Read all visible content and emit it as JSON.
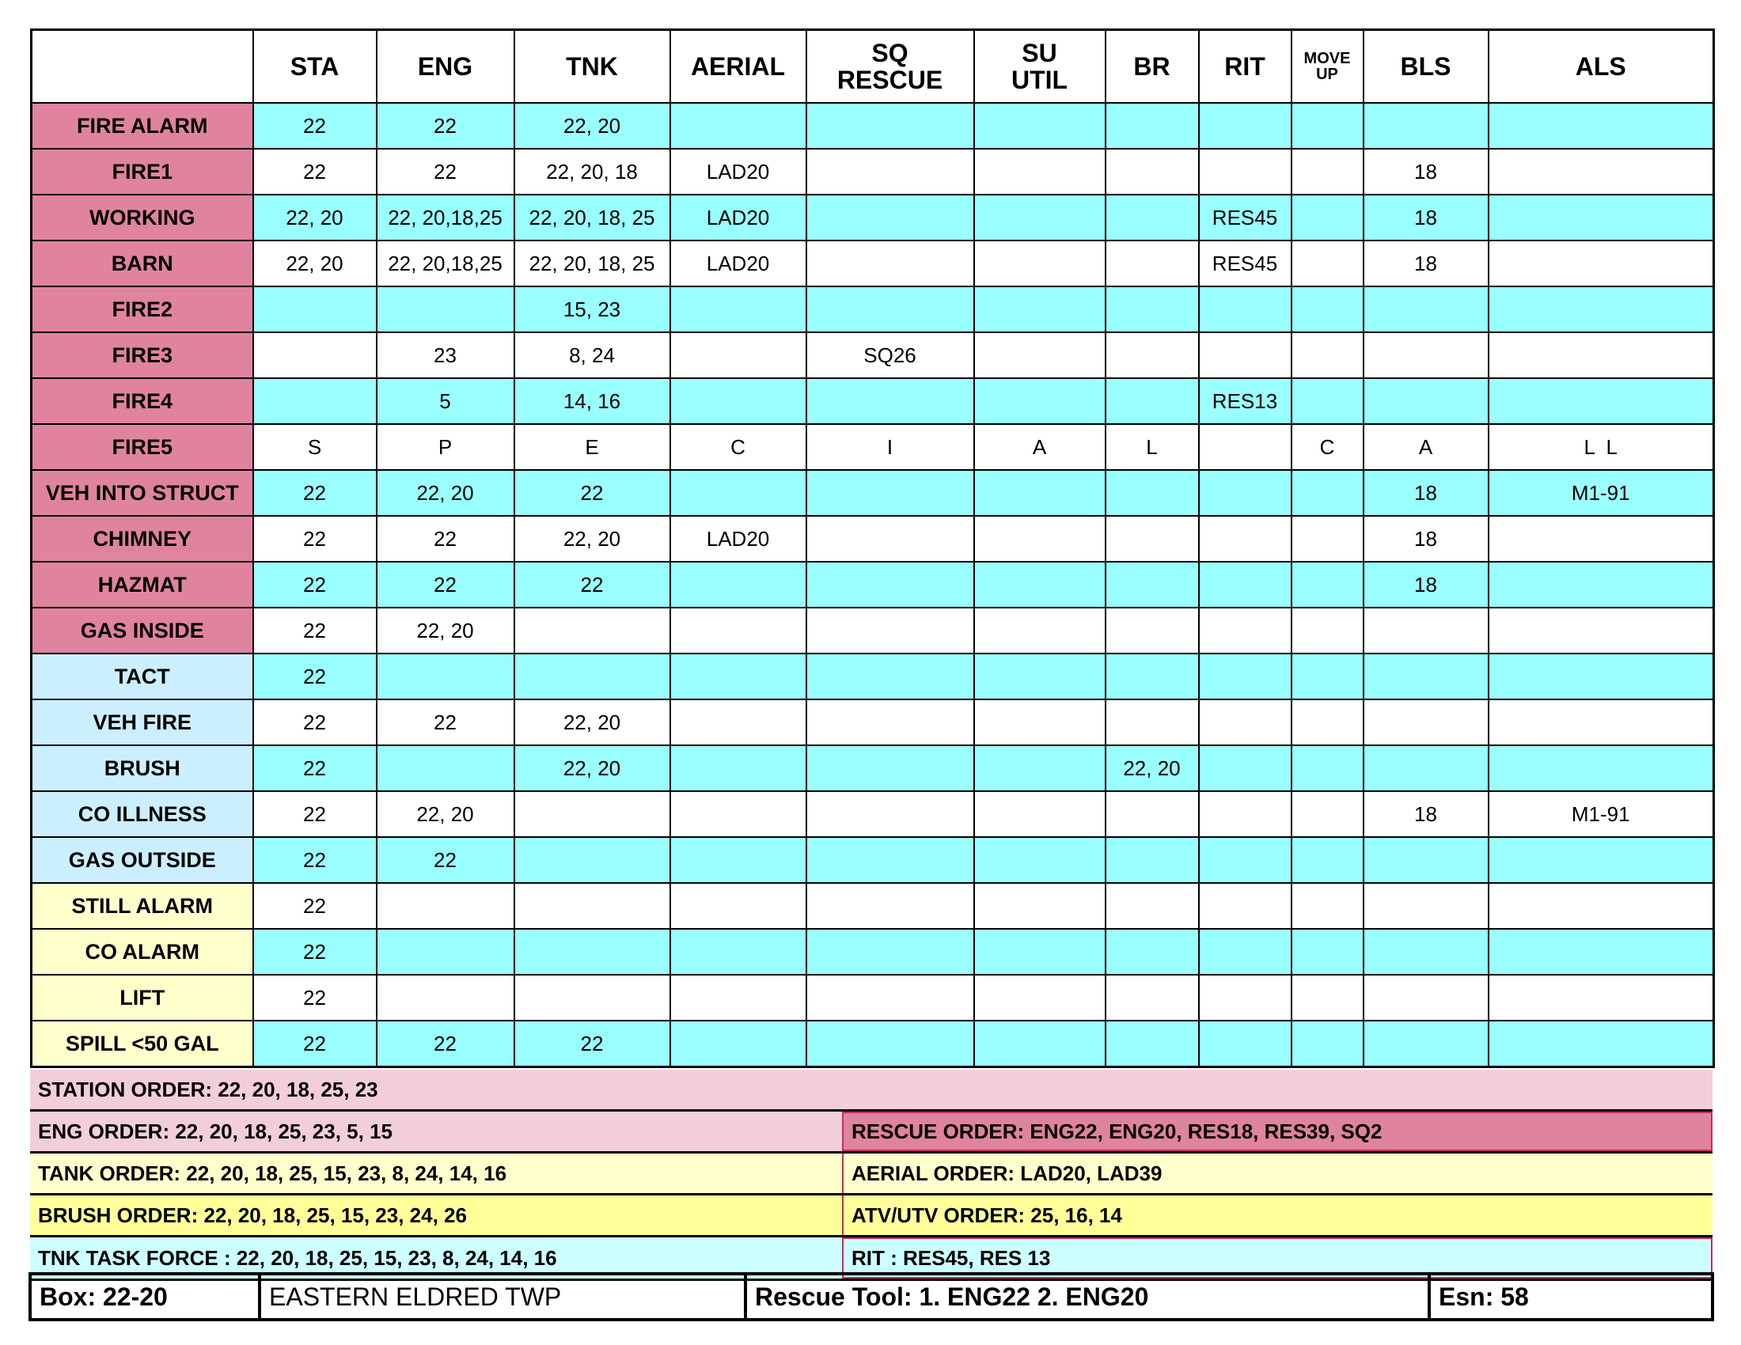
{
  "headers": [
    "",
    "STA",
    "ENG",
    "TNK",
    "AERIAL",
    "SQ RESCUE",
    "SU UTIL",
    "BR",
    "RIT",
    "MOVE UP",
    "BLS",
    "ALS"
  ],
  "rows": [
    {
      "label": "FIRE ALARM",
      "group": "pink",
      "cells": [
        "22",
        "22",
        "22, 20",
        "",
        "",
        "",
        "",
        "",
        "",
        "",
        ""
      ]
    },
    {
      "label": "FIRE1",
      "group": "pink",
      "cells": [
        "22",
        "22",
        "22, 20, 18",
        "LAD20",
        "",
        "",
        "",
        "",
        "",
        "18",
        ""
      ]
    },
    {
      "label": "WORKING",
      "group": "pink",
      "cells": [
        "22, 20",
        "22, 20,18,25",
        "22, 20, 18, 25",
        "LAD20",
        "",
        "",
        "",
        "RES45",
        "",
        "18",
        ""
      ]
    },
    {
      "label": "BARN",
      "group": "pink",
      "cells": [
        "22, 20",
        "22, 20,18,25",
        "22, 20, 18, 25",
        "LAD20",
        "",
        "",
        "",
        "RES45",
        "",
        "18",
        ""
      ]
    },
    {
      "label": "FIRE2",
      "group": "pink",
      "cells": [
        "",
        "",
        "15, 23",
        "",
        "",
        "",
        "",
        "",
        "",
        "",
        ""
      ]
    },
    {
      "label": "FIRE3",
      "group": "pink",
      "cells": [
        "",
        "23",
        "8, 24",
        "",
        "SQ26",
        "",
        "",
        "",
        "",
        "",
        ""
      ]
    },
    {
      "label": "FIRE4",
      "group": "pink",
      "cells": [
        "",
        "5",
        "14, 16",
        "",
        "",
        "",
        "",
        "RES13",
        "",
        "",
        ""
      ]
    },
    {
      "label": "FIRE5",
      "group": "pink",
      "cells": [
        "S",
        "P",
        "E",
        "C",
        "I",
        "A",
        "L",
        "",
        "C",
        "A",
        "L  L"
      ]
    },
    {
      "label": "VEH INTO STRUCT",
      "group": "pink",
      "cells": [
        "22",
        "22, 20",
        "22",
        "",
        "",
        "",
        "",
        "",
        "",
        "18",
        "M1-91"
      ]
    },
    {
      "label": "CHIMNEY",
      "group": "pink",
      "cells": [
        "22",
        "22",
        "22, 20",
        "LAD20",
        "",
        "",
        "",
        "",
        "",
        "18",
        ""
      ]
    },
    {
      "label": "HAZMAT",
      "group": "pink",
      "cells": [
        "22",
        "22",
        "22",
        "",
        "",
        "",
        "",
        "",
        "",
        "18",
        ""
      ]
    },
    {
      "label": "GAS INSIDE",
      "group": "pink",
      "cells": [
        "22",
        "22, 20",
        "",
        "",
        "",
        "",
        "",
        "",
        "",
        "",
        ""
      ]
    },
    {
      "label": "TACT",
      "group": "blue",
      "cells": [
        "22",
        "",
        "",
        "",
        "",
        "",
        "",
        "",
        "",
        "",
        ""
      ]
    },
    {
      "label": "VEH FIRE",
      "group": "blue",
      "cells": [
        "22",
        "22",
        "22, 20",
        "",
        "",
        "",
        "",
        "",
        "",
        "",
        ""
      ]
    },
    {
      "label": "BRUSH",
      "group": "blue",
      "cells": [
        "22",
        "",
        "22, 20",
        "",
        "",
        "",
        "22, 20",
        "",
        "",
        "",
        ""
      ]
    },
    {
      "label": "CO ILLNESS",
      "group": "blue",
      "cells": [
        "22",
        "22, 20",
        "",
        "",
        "",
        "",
        "",
        "",
        "",
        "18",
        "M1-91"
      ]
    },
    {
      "label": "GAS OUTSIDE",
      "group": "blue",
      "cells": [
        "22",
        "22",
        "",
        "",
        "",
        "",
        "",
        "",
        "",
        "",
        ""
      ]
    },
    {
      "label": "STILL ALARM",
      "group": "yel",
      "cells": [
        "22",
        "",
        "",
        "",
        "",
        "",
        "",
        "",
        "",
        "",
        ""
      ]
    },
    {
      "label": "CO ALARM",
      "group": "yel",
      "cells": [
        "22",
        "",
        "",
        "",
        "",
        "",
        "",
        "",
        "",
        "",
        ""
      ]
    },
    {
      "label": "LIFT",
      "group": "yel",
      "cells": [
        "22",
        "",
        "",
        "",
        "",
        "",
        "",
        "",
        "",
        "",
        ""
      ]
    },
    {
      "label": "SPILL <50 GAL",
      "group": "yel",
      "cells": [
        "22",
        "22",
        "22",
        "",
        "",
        "",
        "",
        "",
        "",
        "",
        ""
      ]
    }
  ],
  "orders": {
    "station": "STATION ORDER: 22, 20, 18, 25, 23",
    "eng": "ENG ORDER: 22, 20, 18, 25, 23, 5, 15",
    "rescue": "RESCUE ORDER: ENG22, ENG20, RES18, RES39, SQ2",
    "tank": "TANK ORDER: 22, 20, 18, 25, 15, 23, 8, 24, 14, 16",
    "aerial": "AERIAL ORDER: LAD20, LAD39",
    "brush": "BRUSH ORDER: 22, 20, 18, 25, 15, 23, 24, 26",
    "atv": "ATV/UTV ORDER: 25, 16, 14",
    "tnk_task_force": "TNK TASK FORCE : 22, 20, 18, 25, 15, 23, 8, 24, 14, 16",
    "rit": "RIT : RES45, RES 13"
  },
  "footer": {
    "box": "Box: 22-20",
    "area": "EASTERN ELDRED TWP",
    "rescue_tool": "Rescue Tool: 1. ENG22  2. ENG20",
    "esn": "Esn: 58"
  },
  "colors": {
    "pink": "#e0839f",
    "blue": "#ccefff",
    "yellow": "#ffffcc",
    "cyan": "#99ffff",
    "station_bg": "#f2cedb",
    "brush_bg": "#ffff99",
    "task_bg": "#ccffff"
  }
}
